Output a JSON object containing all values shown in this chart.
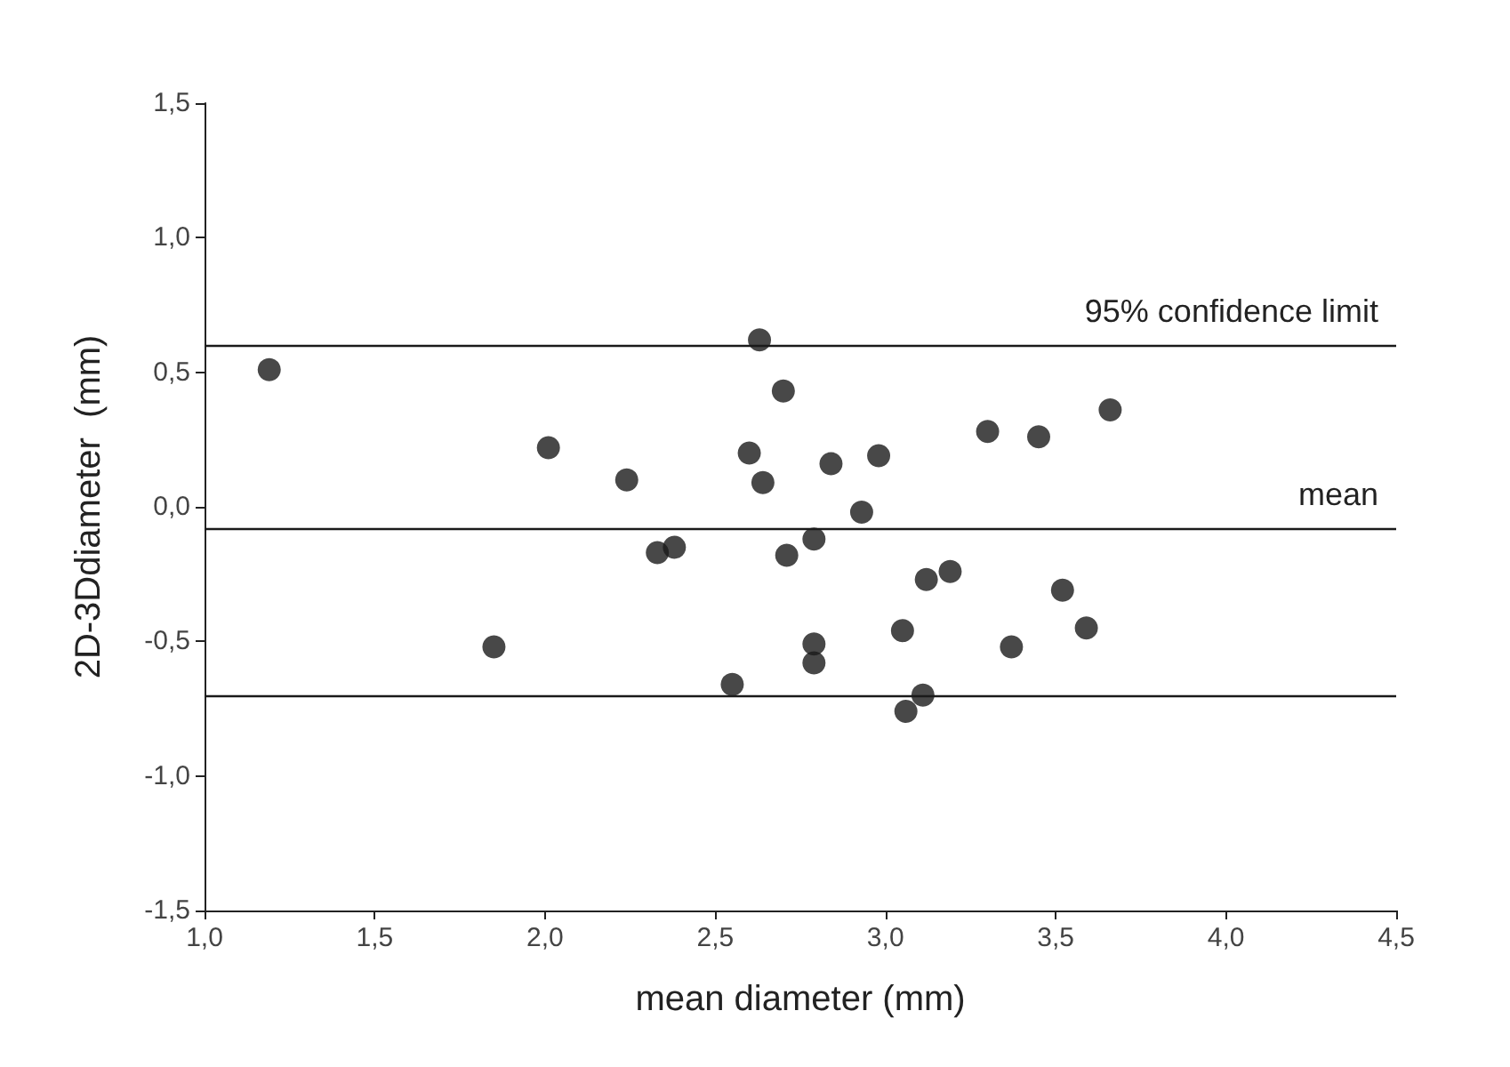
{
  "chart_data": {
    "type": "scatter",
    "xlabel": "mean diameter (mm)",
    "ylabel": "2D-3Ddiameter  (mm)",
    "x": [
      1.19,
      2.01,
      2.24,
      2.63,
      2.7,
      2.6,
      2.64,
      2.33,
      2.38,
      2.71,
      1.85,
      2.55,
      2.84,
      2.98,
      2.93,
      2.79,
      3.3,
      3.45,
      3.66,
      3.12,
      3.19,
      3.52,
      3.59,
      3.37,
      3.05,
      2.79,
      2.79,
      3.11,
      3.06
    ],
    "series": [
      {
        "color": "#1a1a1a",
        "values": [
          0.51,
          0.22,
          0.1,
          0.62,
          0.43,
          0.2,
          0.09,
          -0.17,
          -0.15,
          -0.18,
          -0.52,
          -0.66,
          0.16,
          0.19,
          -0.02,
          -0.12,
          0.28,
          0.26,
          0.36,
          -0.27,
          -0.24,
          -0.31,
          -0.45,
          -0.52,
          -0.46,
          -0.51,
          -0.58,
          -0.7,
          -0.76
        ]
      }
    ],
    "xlim": [
      1.0,
      4.5
    ],
    "xticks": [
      {
        "value": 1.0,
        "label": "1,0"
      },
      {
        "value": 1.5,
        "label": "1,5"
      },
      {
        "value": 2.0,
        "label": "2,0"
      },
      {
        "value": 2.5,
        "label": "2,5"
      },
      {
        "value": 3.0,
        "label": "3,0"
      },
      {
        "value": 3.5,
        "label": "3,5"
      },
      {
        "value": 4.0,
        "label": "4,0"
      },
      {
        "value": 4.5,
        "label": "4,5"
      }
    ],
    "ylim": [
      -1.5,
      1.5
    ],
    "yticks": [
      {
        "value": -1.5,
        "label": "-1,5"
      },
      {
        "value": -1.0,
        "label": "-1,0"
      },
      {
        "value": -0.5,
        "label": "-0,5"
      },
      {
        "value": 0.0,
        "label": "0,0"
      },
      {
        "value": 0.5,
        "label": "0,5"
      },
      {
        "value": 1.0,
        "label": "1,0"
      },
      {
        "value": 1.5,
        "label": "1,5"
      }
    ],
    "ref_lines": [
      {
        "axis": "y",
        "value": 0.6,
        "label": "95% confidence limit",
        "color": "#1a1a1a"
      },
      {
        "axis": "y",
        "value": -0.08,
        "label": "mean",
        "color": "#1a1a1a"
      },
      {
        "axis": "y",
        "value": -0.7,
        "label": null,
        "color": "#1a1a1a"
      }
    ],
    "grid": false,
    "marker": "circle"
  }
}
